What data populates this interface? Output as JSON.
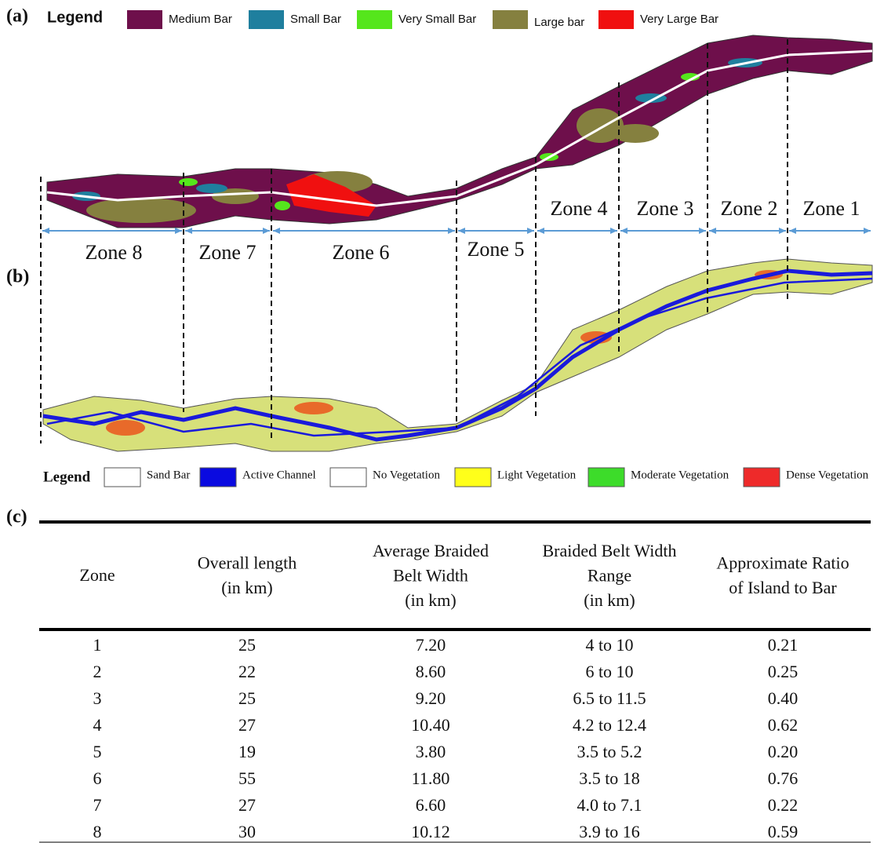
{
  "panel_a": {
    "label": "(a)",
    "legend_title": "Legend",
    "legend": [
      {
        "label": "Medium Bar",
        "color": "#6e0f4b"
      },
      {
        "label": "Small Bar",
        "color": "#1f7f9e"
      },
      {
        "label": "Very Small Bar",
        "color": "#55e61c"
      },
      {
        "label": "Large bar",
        "color": "#85803f"
      },
      {
        "label": "Very Large Bar",
        "color": "#f01010"
      }
    ],
    "zones": [
      "Zone 8",
      "Zone 7",
      "Zone 6",
      "Zone 5",
      "Zone 4",
      "Zone 3",
      "Zone 2",
      "Zone 1"
    ]
  },
  "panel_b": {
    "label": "(b)",
    "legend_title": "Legend",
    "legend": [
      {
        "label": "Sand Bar",
        "color": "#ffffff"
      },
      {
        "label": "Active Channel",
        "color": "#0a0ae0"
      },
      {
        "label": "No Vegetation",
        "color": "#ffffff"
      },
      {
        "label": "Light Vegetation",
        "color": "#ffff1a"
      },
      {
        "label": "Moderate Vegetation",
        "color": "#3ddc2a"
      },
      {
        "label": "Dense Vegetation",
        "color": "#ee2a2a"
      }
    ]
  },
  "panel_c": {
    "label": "(c)",
    "header": [
      [
        "Zone"
      ],
      [
        "Overall length",
        "(in km)"
      ],
      [
        "Average Braided",
        "Belt Width",
        "(in km)"
      ],
      [
        "Braided Belt Width",
        "Range",
        "(in km)"
      ],
      [
        "Approximate Ratio",
        "of Island to Bar"
      ]
    ],
    "rows": [
      [
        "1",
        "25",
        "7.20",
        "4 to 10",
        "0.21"
      ],
      [
        "2",
        "22",
        "8.60",
        "6 to 10",
        "0.25"
      ],
      [
        "3",
        "25",
        "9.20",
        "6.5 to 11.5",
        "0.40"
      ],
      [
        "4",
        "27",
        "10.40",
        "4.2 to 12.4",
        "0.62"
      ],
      [
        "5",
        "19",
        "3.80",
        "3.5 to 5.2",
        "0.20"
      ],
      [
        "6",
        "55",
        "11.80",
        "3.5 to 18",
        "0.76"
      ],
      [
        "7",
        "27",
        "6.60",
        "4.0 to 7.1",
        "0.22"
      ],
      [
        "8",
        "30",
        "10.12",
        "3.9 to 16",
        "0.59"
      ]
    ]
  }
}
